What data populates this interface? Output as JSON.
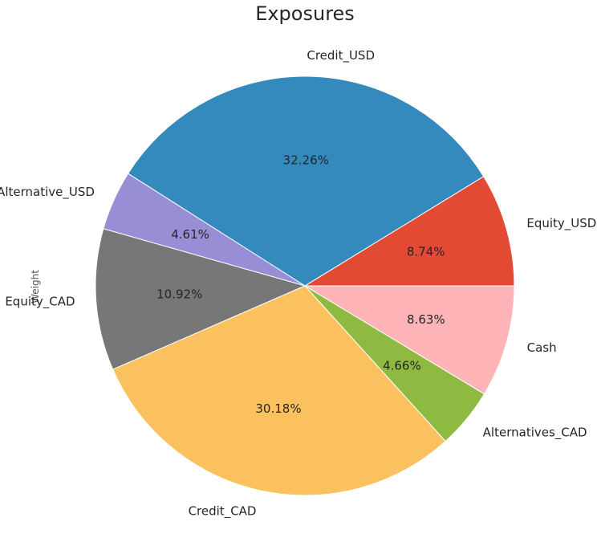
{
  "chart_data": {
    "type": "pie",
    "title": "Exposures",
    "ylabel": "Weight",
    "start_angle_deg": 0,
    "direction": "counterclockwise",
    "slices": [
      {
        "label": "Equity_USD",
        "value": 8.74,
        "pct_label": "8.74%",
        "color": "#E24A33"
      },
      {
        "label": "Credit_USD",
        "value": 32.26,
        "pct_label": "32.26%",
        "color": "#348ABD"
      },
      {
        "label": "Alternative_USD",
        "value": 4.61,
        "pct_label": "4.61%",
        "color": "#988ED5"
      },
      {
        "label": "Equity_CAD",
        "value": 10.92,
        "pct_label": "10.92%",
        "color": "#777777"
      },
      {
        "label": "Credit_CAD",
        "value": 30.18,
        "pct_label": "30.18%",
        "color": "#FBC15E"
      },
      {
        "label": "Alternatives_CAD",
        "value": 4.66,
        "pct_label": "4.66%",
        "color": "#8EBA42"
      },
      {
        "label": "Cash",
        "value": 8.63,
        "pct_label": "8.63%",
        "color": "#FFB5B8"
      }
    ]
  }
}
